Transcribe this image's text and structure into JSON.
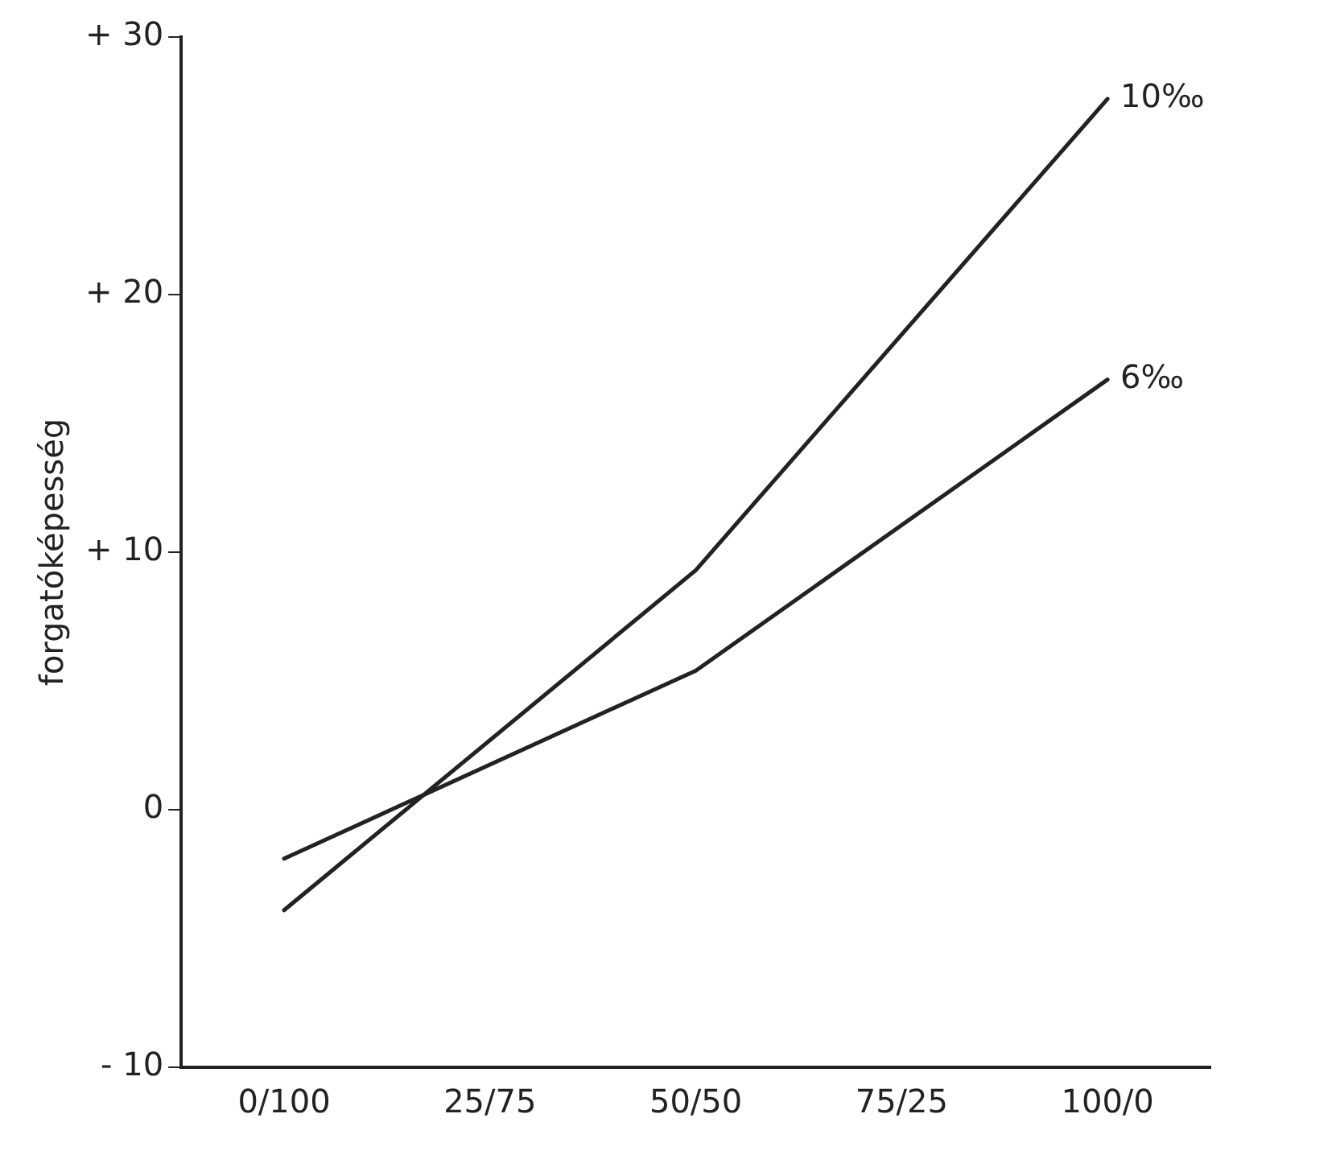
{
  "chart_data": {
    "type": "line",
    "ylabel": "forgatóképesség",
    "categories": [
      "0/100",
      "25/75",
      "50/50",
      "75/25",
      "100/0"
    ],
    "series": [
      {
        "name": "10‰",
        "color": "#222222",
        "values": [
          -3.9,
          null,
          9.3,
          null,
          27.6
        ]
      },
      {
        "name": "6‰",
        "color": "#222222",
        "values": [
          -1.9,
          null,
          5.4,
          null,
          16.7
        ]
      }
    ],
    "ylim": [
      -10,
      30
    ],
    "yticks": [
      {
        "value": -10,
        "label": "- 10"
      },
      0,
      {
        "value": 10,
        "label": "+ 10"
      },
      {
        "value": 20,
        "label": "+ 20"
      },
      {
        "value": 30,
        "label": "+ 30"
      }
    ],
    "grid": false,
    "legend": false,
    "marker": "none",
    "line_style": "solid"
  }
}
